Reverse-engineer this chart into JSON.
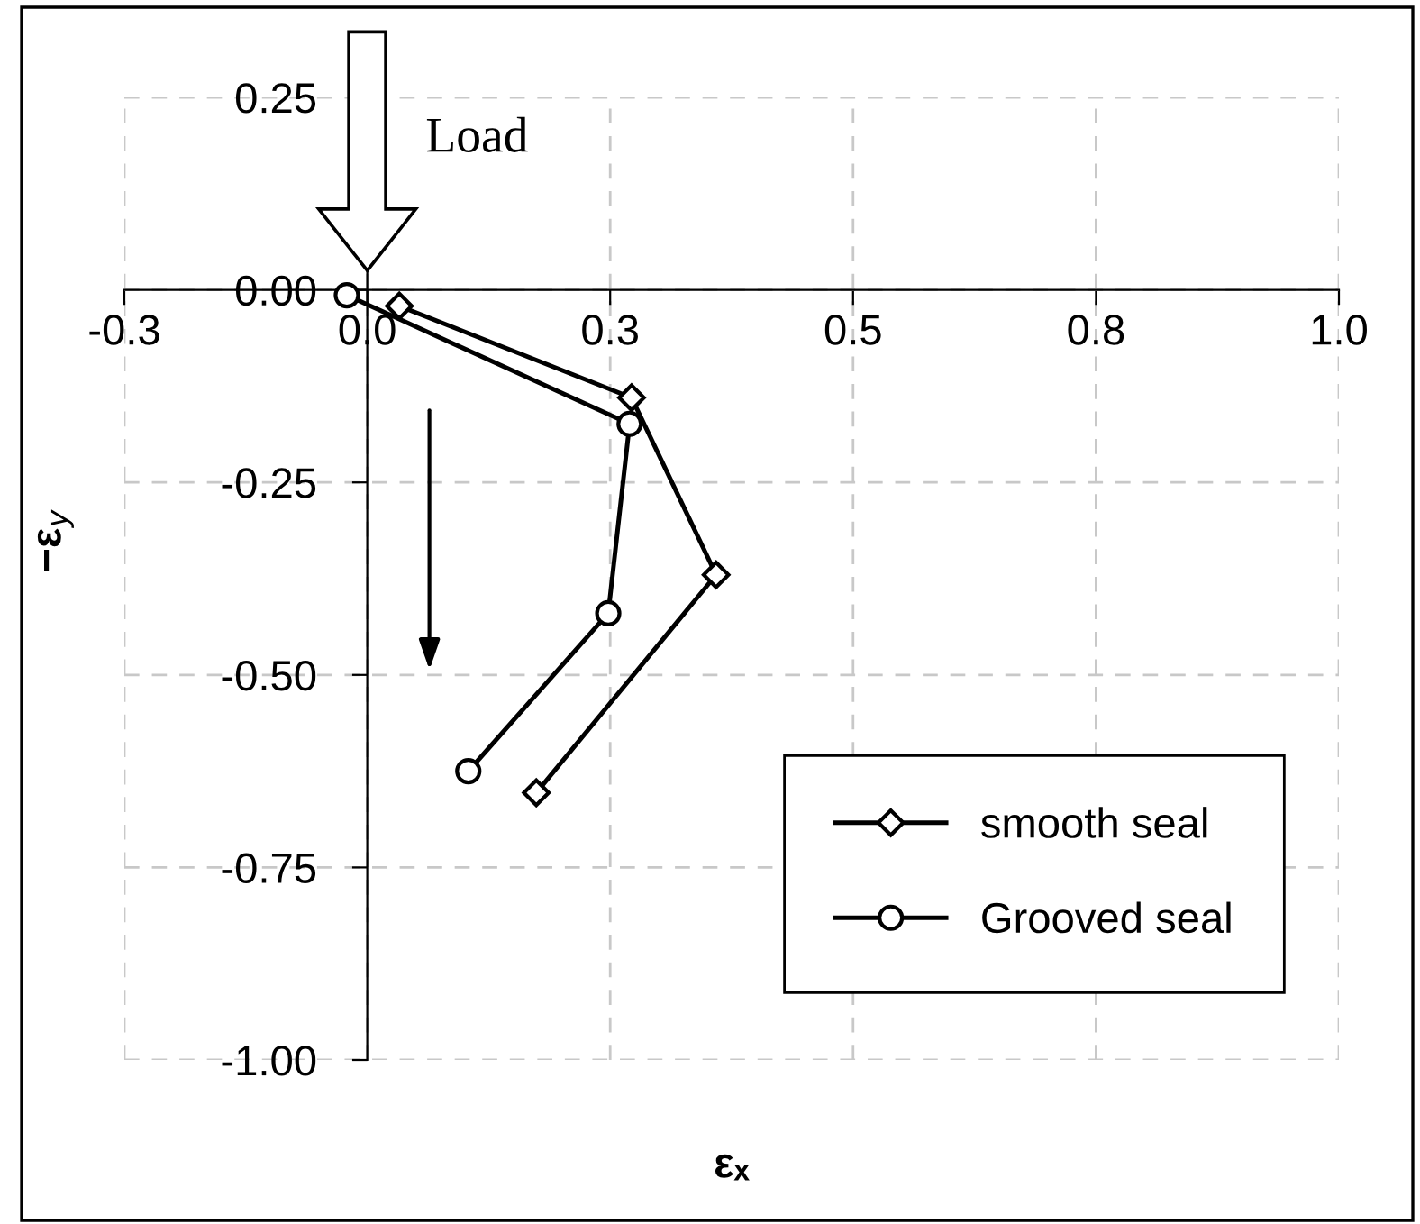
{
  "chart_data": {
    "type": "line",
    "xlabel": "εₓ",
    "ylabel": "−ε$_{y}$",
    "xlim": [
      -0.25,
      1.0
    ],
    "ylim": [
      -1.0,
      0.25
    ],
    "xticks": [
      {
        "value": -0.25,
        "label": "-0.3"
      },
      {
        "value": 0,
        "label": "0.0"
      },
      {
        "value": 0.25,
        "label": "0.3"
      },
      {
        "value": 0.5,
        "label": "0.5"
      },
      {
        "value": 0.75,
        "label": "0.8"
      },
      {
        "value": 1.0,
        "label": "1.0"
      }
    ],
    "yticks": [
      {
        "value": 0.25,
        "label": "0.25"
      },
      {
        "value": 0,
        "label": "0.00"
      },
      {
        "value": -0.25,
        "label": "-0.25"
      },
      {
        "value": -0.5,
        "label": "-0.50"
      },
      {
        "value": -0.75,
        "label": "-0.75"
      },
      {
        "value": -1.0,
        "label": "-1.00"
      }
    ],
    "grid": true,
    "legend": "bottom right",
    "line_style": "solid",
    "annotations": [
      "Load"
    ],
    "series": [
      {
        "name": "smooth seal",
        "color": "#000000",
        "marker": "diamond",
        "x": [
          0.033,
          0.272,
          0.359,
          0.174
        ],
        "values": [
          -0.021,
          -0.14,
          -0.37,
          -0.653
        ]
      },
      {
        "name": "Grooved seal",
        "color": "#000000",
        "marker": "circle",
        "x": [
          -0.021,
          0.27,
          0.248,
          0.104
        ],
        "values": [
          -0.007,
          -0.174,
          -0.42,
          -0.625
        ]
      }
    ]
  }
}
